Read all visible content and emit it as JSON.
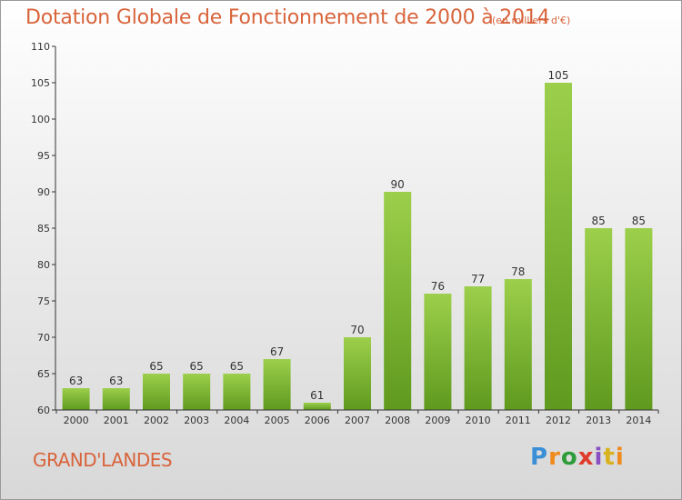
{
  "header": {
    "title": "Dotation Globale de Fonctionnement de 2000 à 2014",
    "unit_note": "(en milliers d'€)"
  },
  "footer": {
    "place": "GRAND'LANDES",
    "logo_text": "Proxiti"
  },
  "colors": {
    "accent_text": "#d8643c",
    "bar_light": "#9ccf4b",
    "bar_dark": "#5f9a1e",
    "axis": "#333333"
  },
  "chart_data": {
    "type": "bar",
    "title": "Dotation Globale de Fonctionnement de 2000 à 2014",
    "subtitle": "(en milliers d'€)",
    "xlabel": "",
    "ylabel": "",
    "categories": [
      "2000",
      "2001",
      "2002",
      "2003",
      "2004",
      "2005",
      "2006",
      "2007",
      "2008",
      "2009",
      "2010",
      "2011",
      "2012",
      "2013",
      "2014"
    ],
    "values": [
      63,
      63,
      65,
      65,
      65,
      67,
      61,
      70,
      90,
      76,
      77,
      78,
      105,
      85,
      85
    ],
    "ylim": [
      60,
      110
    ],
    "yticks": [
      60,
      65,
      70,
      75,
      80,
      85,
      90,
      95,
      100,
      105,
      110
    ],
    "grid": false,
    "legend": "none",
    "data_labels": true
  }
}
